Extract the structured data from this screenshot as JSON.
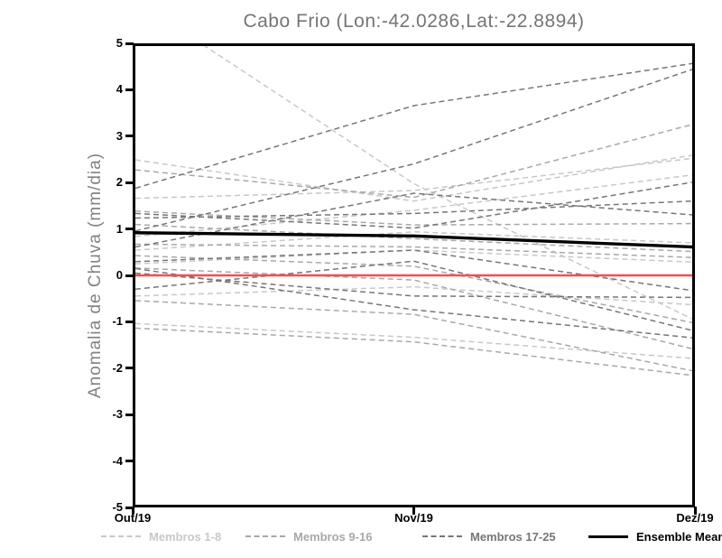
{
  "window": {
    "background": "#ffffff"
  },
  "chart_data": {
    "type": "line",
    "title": "Cabo Frio (Lon:-42.0286,Lat:-22.8894)",
    "ylabel": "Anomalia de Chuva (mm/dia)",
    "xlabel": "",
    "x_categories": [
      "Out/19",
      "Nov/19",
      "Dez/19"
    ],
    "ylim": [
      -5,
      5
    ],
    "y_ticks": [
      5,
      4,
      3,
      2,
      1,
      0,
      -1,
      -2,
      -3,
      -4,
      -5
    ],
    "grid": false,
    "legend_position": "bottom",
    "zero_line": {
      "value": 0,
      "color": "#f05050"
    },
    "series_groups": [
      {
        "name": "Membros 1-8",
        "color": "#c8c8c8",
        "line_style": "dashed",
        "members": [
          [
            6.0,
            2.0,
            -0.95
          ],
          [
            2.52,
            1.62,
            2.62
          ],
          [
            1.68,
            1.85,
            2.55
          ],
          [
            0.85,
            1.42,
            2.19
          ],
          [
            0.55,
            0.95,
            0.71
          ],
          [
            0.25,
            0.55,
            0.29
          ],
          [
            -0.45,
            -0.25,
            -0.64
          ],
          [
            -1.05,
            -1.35,
            -1.81
          ]
        ]
      },
      {
        "name": "Membros 9-16",
        "color": "#a8a8a8",
        "line_style": "dashed",
        "members": [
          [
            2.3,
            1.7,
            3.29
          ],
          [
            1.4,
            1.1,
            1.13
          ],
          [
            1.11,
            0.8,
            0.52
          ],
          [
            0.68,
            0.62,
            0.39
          ],
          [
            0.43,
            0.2,
            -1.03
          ],
          [
            0.16,
            -0.1,
            -1.6
          ],
          [
            -0.55,
            -0.85,
            -2.08
          ],
          [
            -1.15,
            -1.45,
            -2.18
          ]
        ]
      },
      {
        "name": "Membros 17-25",
        "color": "#767676",
        "line_style": "dashed",
        "members": [
          [
            1.9,
            3.7,
            4.62
          ],
          [
            0.97,
            2.43,
            4.49
          ],
          [
            1.35,
            1.03,
            2.03
          ],
          [
            1.25,
            1.35,
            1.62
          ],
          [
            0.62,
            1.79,
            1.32
          ],
          [
            0.3,
            0.55,
            -0.33
          ],
          [
            0.05,
            -0.45,
            -0.48
          ],
          [
            -0.3,
            0.31,
            -1.2
          ],
          [
            0.15,
            -0.75,
            -1.36
          ]
        ]
      }
    ],
    "ensemble_mean": {
      "name": "Ensemble Mean",
      "color": "#000000",
      "line_style": "solid",
      "values": [
        0.93,
        0.86,
        0.62
      ]
    }
  },
  "legend": {
    "entries": [
      {
        "label": "Membros 1-8",
        "color": "#c8c8c8",
        "style": "dashed"
      },
      {
        "label": "Membros 9-16",
        "color": "#a8a8a8",
        "style": "dashed"
      },
      {
        "label": "Membros 17-25",
        "color": "#767676",
        "style": "dashed"
      },
      {
        "label": "Ensemble Mean",
        "color": "#000000",
        "style": "solid"
      }
    ]
  }
}
